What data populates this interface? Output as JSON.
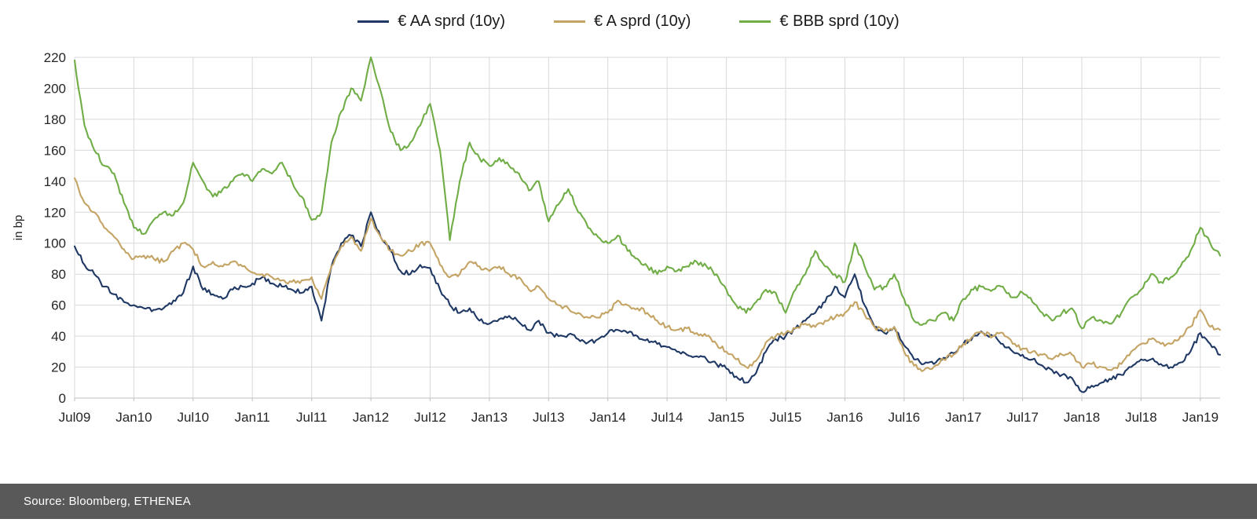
{
  "footer": {
    "text": "Source: Bloomberg, ETHENEA",
    "background": "#595959"
  },
  "axes": {
    "ylabel": "in bp",
    "grid_color": "#d9d9d9",
    "axis_color": "#bfbfbf",
    "text_color": "#262626"
  },
  "chart_data": {
    "type": "line",
    "title": "",
    "ylabel": "in bp",
    "ylim": [
      0,
      220
    ],
    "ytick_step": 20,
    "grid": true,
    "legend_position": "top",
    "x_tick_labels": [
      "Jul09",
      "Jan10",
      "Jul10",
      "Jan11",
      "Jul11",
      "Jan12",
      "Jul12",
      "Jan13",
      "Jul13",
      "Jan14",
      "Jul14",
      "Jan15",
      "Jul15",
      "Jan16",
      "Jul16",
      "Jan17",
      "Jul17",
      "Jan18",
      "Jul18",
      "Jan19"
    ],
    "x_tick_every": 6,
    "x": [
      "2009-07",
      "2009-08",
      "2009-09",
      "2009-10",
      "2009-11",
      "2009-12",
      "2010-01",
      "2010-02",
      "2010-03",
      "2010-04",
      "2010-05",
      "2010-06",
      "2010-07",
      "2010-08",
      "2010-09",
      "2010-10",
      "2010-11",
      "2010-12",
      "2011-01",
      "2011-02",
      "2011-03",
      "2011-04",
      "2011-05",
      "2011-06",
      "2011-07",
      "2011-08",
      "2011-09",
      "2011-10",
      "2011-11",
      "2011-12",
      "2012-01",
      "2012-02",
      "2012-03",
      "2012-04",
      "2012-05",
      "2012-06",
      "2012-07",
      "2012-08",
      "2012-09",
      "2012-10",
      "2012-11",
      "2012-12",
      "2013-01",
      "2013-02",
      "2013-03",
      "2013-04",
      "2013-05",
      "2013-06",
      "2013-07",
      "2013-08",
      "2013-09",
      "2013-10",
      "2013-11",
      "2013-12",
      "2014-01",
      "2014-02",
      "2014-03",
      "2014-04",
      "2014-05",
      "2014-06",
      "2014-07",
      "2014-08",
      "2014-09",
      "2014-10",
      "2014-11",
      "2014-12",
      "2015-01",
      "2015-02",
      "2015-03",
      "2015-04",
      "2015-05",
      "2015-06",
      "2015-07",
      "2015-08",
      "2015-09",
      "2015-10",
      "2015-11",
      "2015-12",
      "2016-01",
      "2016-02",
      "2016-03",
      "2016-04",
      "2016-05",
      "2016-06",
      "2016-07",
      "2016-08",
      "2016-09",
      "2016-10",
      "2016-11",
      "2016-12",
      "2017-01",
      "2017-02",
      "2017-03",
      "2017-04",
      "2017-05",
      "2017-06",
      "2017-07",
      "2017-08",
      "2017-09",
      "2017-10",
      "2017-11",
      "2017-12",
      "2018-01",
      "2018-02",
      "2018-03",
      "2018-04",
      "2018-05",
      "2018-06",
      "2018-07",
      "2018-08",
      "2018-09",
      "2018-10",
      "2018-11",
      "2018-12",
      "2019-01",
      "2019-02",
      "2019-03"
    ],
    "series": [
      {
        "name": "€ AA sprd (10y)",
        "color": "#1f3864",
        "values": [
          98,
          86,
          80,
          72,
          67,
          62,
          60,
          58,
          57,
          58,
          63,
          68,
          85,
          70,
          67,
          64,
          70,
          72,
          74,
          78,
          74,
          72,
          70,
          68,
          72,
          50,
          85,
          100,
          105,
          98,
          120,
          104,
          95,
          82,
          80,
          86,
          84,
          70,
          60,
          55,
          58,
          50,
          48,
          51,
          53,
          49,
          44,
          50,
          42,
          40,
          41,
          38,
          36,
          38,
          42,
          44,
          42,
          40,
          38,
          35,
          33,
          30,
          28,
          27,
          25,
          22,
          19,
          14,
          10,
          16,
          30,
          38,
          40,
          45,
          50,
          55,
          62,
          72,
          65,
          80,
          60,
          46,
          42,
          46,
          34,
          25,
          22,
          22,
          26,
          29,
          35,
          40,
          42,
          40,
          35,
          30,
          28,
          25,
          21,
          18,
          15,
          13,
          4,
          8,
          10,
          12,
          15,
          20,
          25,
          25,
          22,
          20,
          23,
          30,
          42,
          35,
          28
        ]
      },
      {
        "name": "€ A sprd (10y)",
        "color": "#c4a464",
        "values": [
          142,
          126,
          120,
          110,
          104,
          96,
          90,
          92,
          90,
          88,
          95,
          100,
          96,
          85,
          88,
          85,
          88,
          85,
          81,
          80,
          78,
          76,
          75,
          76,
          78,
          64,
          85,
          98,
          104,
          95,
          116,
          104,
          95,
          92,
          95,
          100,
          100,
          86,
          78,
          80,
          88,
          85,
          82,
          85,
          80,
          78,
          70,
          72,
          64,
          60,
          58,
          55,
          52,
          52,
          55,
          63,
          60,
          58,
          55,
          50,
          46,
          44,
          45,
          42,
          40,
          35,
          30,
          25,
          20,
          24,
          36,
          40,
          42,
          45,
          48,
          46,
          50,
          52,
          55,
          62,
          54,
          46,
          43,
          46,
          30,
          21,
          18,
          20,
          25,
          28,
          35,
          40,
          42,
          40,
          42,
          35,
          32,
          30,
          28,
          25,
          28,
          28,
          20,
          22,
          20,
          18,
          22,
          30,
          35,
          38,
          35,
          35,
          40,
          46,
          57,
          46,
          44
        ]
      },
      {
        "name": "€ BBB sprd (10y)",
        "color": "#70ad47",
        "values": [
          218,
          176,
          160,
          150,
          145,
          126,
          110,
          106,
          115,
          120,
          118,
          126,
          152,
          140,
          130,
          135,
          140,
          145,
          140,
          148,
          145,
          152,
          140,
          130,
          115,
          120,
          165,
          185,
          200,
          192,
          220,
          198,
          172,
          160,
          165,
          176,
          190,
          160,
          102,
          140,
          165,
          155,
          150,
          155,
          150,
          145,
          134,
          140,
          114,
          125,
          135,
          120,
          110,
          104,
          100,
          105,
          95,
          90,
          85,
          80,
          85,
          82,
          85,
          88,
          85,
          80,
          70,
          60,
          55,
          62,
          70,
          68,
          55,
          70,
          80,
          95,
          85,
          80,
          75,
          100,
          85,
          70,
          72,
          80,
          64,
          50,
          48,
          50,
          55,
          50,
          64,
          70,
          72,
          70,
          72,
          65,
          68,
          62,
          55,
          50,
          55,
          58,
          45,
          52,
          50,
          48,
          55,
          65,
          70,
          80,
          75,
          78,
          85,
          95,
          110,
          100,
          92
        ]
      }
    ]
  }
}
